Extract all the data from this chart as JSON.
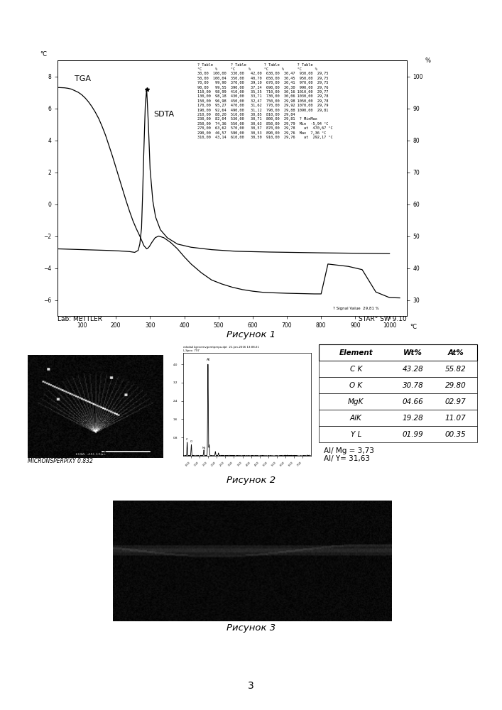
{
  "fig1_title": "Рисунок 1",
  "fig2_title": "Рисунок 2",
  "fig3_title": "Рисунок 3",
  "page_number": "3",
  "lab_label": "Lab: METTLER",
  "star_label": "STAR° SW 9.10",
  "signal_value_label": "? Signal Value  29,81 %",
  "tga_label": "TGA",
  "sdta_label": "SDTA",
  "tga_x": [
    30,
    50,
    60,
    70,
    80,
    90,
    100,
    110,
    120,
    130,
    140,
    150,
    160,
    170,
    180,
    190,
    200,
    210,
    220,
    230,
    240,
    250,
    260,
    270,
    278,
    282,
    286,
    290,
    294,
    298,
    305,
    315,
    325,
    340,
    360,
    380,
    400,
    420,
    450,
    480,
    510,
    540,
    570,
    600,
    630,
    660,
    700,
    740,
    780,
    800,
    820,
    840,
    860,
    880,
    920,
    960,
    1000,
    1030
  ],
  "tga_y": [
    7.3,
    7.28,
    7.25,
    7.2,
    7.1,
    7.0,
    6.85,
    6.65,
    6.4,
    6.1,
    5.75,
    5.35,
    4.85,
    4.3,
    3.65,
    3.0,
    2.3,
    1.6,
    0.9,
    0.2,
    -0.45,
    -1.05,
    -1.55,
    -2.0,
    -2.4,
    -2.6,
    -2.7,
    -2.8,
    -2.75,
    -2.65,
    -2.4,
    -2.1,
    -2.0,
    -2.1,
    -2.4,
    -2.8,
    -3.3,
    -3.75,
    -4.3,
    -4.75,
    -5.0,
    -5.2,
    -5.35,
    -5.45,
    -5.52,
    -5.55,
    -5.58,
    -5.6,
    -5.62,
    -5.62,
    -3.75,
    -3.8,
    -3.85,
    -3.9,
    -4.1,
    -5.5,
    -5.85,
    -5.87
  ],
  "sdta_x": [
    30,
    60,
    90,
    120,
    150,
    180,
    210,
    240,
    255,
    265,
    270,
    275,
    278,
    282,
    286,
    290,
    295,
    300,
    308,
    316,
    330,
    350,
    380,
    420,
    480,
    550,
    650,
    800,
    1000
  ],
  "sdta_y": [
    -2.8,
    -2.82,
    -2.84,
    -2.86,
    -2.88,
    -2.9,
    -2.93,
    -2.97,
    -3.02,
    -2.9,
    -2.5,
    -1.5,
    0.5,
    3.5,
    6.2,
    7.2,
    5.0,
    2.2,
    0.2,
    -0.8,
    -1.6,
    -2.1,
    -2.5,
    -2.7,
    -2.85,
    -2.95,
    -3.0,
    -3.05,
    -3.1
  ],
  "elem_headers": [
    "Element",
    "Wt%",
    "At%"
  ],
  "elem_rows": [
    [
      "C K",
      "43.28",
      "55.82"
    ],
    [
      "O K",
      "30.78",
      "29.80"
    ],
    [
      "MgK",
      "04.66",
      "02.97"
    ],
    [
      "AlK",
      "19.28",
      "11.07"
    ],
    [
      "Y L",
      "01.99",
      "00.35"
    ]
  ],
  "ratio_text": "Al/ Mg = 3,73\nAl/ Y= 31,63",
  "kv_label": "KV 30.0   MAG 156   TILT  0.0\nMICRONSPERPIXY 0.832"
}
